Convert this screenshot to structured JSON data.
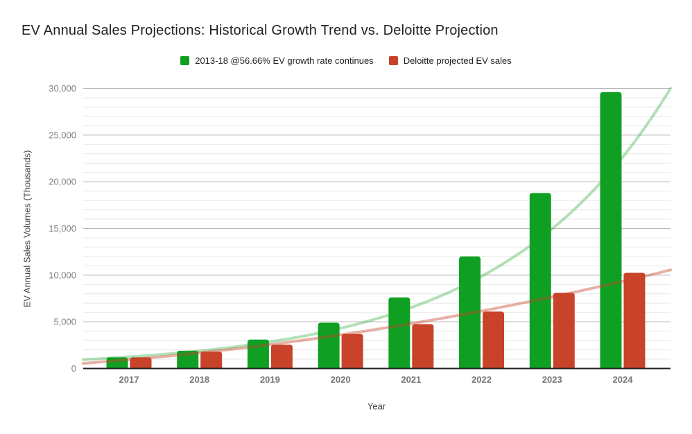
{
  "chart_data": {
    "type": "bar",
    "title": "EV Annual Sales Projections: Historical Growth Trend vs. Deloitte Projection",
    "xlabel": "Year",
    "ylabel": "EV Annual Sales Volumes (Thousands)",
    "categories": [
      "2017",
      "2018",
      "2019",
      "2020",
      "2021",
      "2022",
      "2023",
      "2024"
    ],
    "series": [
      {
        "name": "2013-18 @56.66% EV growth rate continues",
        "color": "#0FA023",
        "values": [
          1200,
          1900,
          3100,
          4900,
          7600,
          12000,
          18800,
          29600
        ]
      },
      {
        "name": "Deloitte projected EV sales",
        "color": "#C9422A",
        "values": [
          1200,
          1800,
          2550,
          3700,
          4750,
          6100,
          8100,
          10250
        ]
      }
    ],
    "trendlines": [
      {
        "for_series": 0,
        "type": "exponential",
        "start_value": 950,
        "end_value": 30000,
        "color": "rgba(18,158,32,0.32)"
      },
      {
        "for_series": 1,
        "type": "quadratic",
        "coeffs": [
          550,
          4600,
          5400
        ],
        "end_value": 10550,
        "color": "rgba(200,67,43,0.42)"
      }
    ],
    "ylim": [
      0,
      30000
    ],
    "yticks": [
      {
        "value": 0,
        "label": "0"
      },
      {
        "value": 5000,
        "label": "5,000"
      },
      {
        "value": 10000,
        "label": "10,000"
      },
      {
        "value": 15000,
        "label": "15,000"
      },
      {
        "value": 20000,
        "label": "20,000"
      },
      {
        "value": 25000,
        "label": "25,000"
      },
      {
        "value": 30000,
        "label": "30,000"
      }
    ],
    "y_minor_step": 1000,
    "grid": {
      "major_color": "#b5b5b5",
      "minor_color": "#e7e7e7",
      "baseline_color": "#212121",
      "minor_on": true
    },
    "legend_position": "top",
    "tick_label_color": "#818181",
    "category_label_color": "#757575"
  }
}
